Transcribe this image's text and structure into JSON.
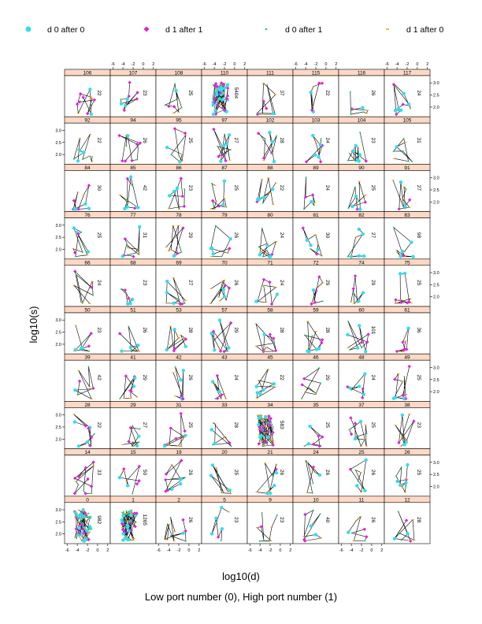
{
  "chart_data": {
    "type": "scatter",
    "title": "",
    "xlabel": "log10(d)",
    "ylabel": "log10(s)",
    "caption": "Low port number (0), High port number (1)",
    "x_ticks": [
      "-6",
      "-4",
      "-2",
      "0",
      "2"
    ],
    "y_ticks": [
      "2.0",
      "2.5",
      "3.0"
    ],
    "ylim": [
      1.6,
      3.3
    ],
    "xlim": [
      -6.5,
      2.5
    ],
    "legend": {
      "placement": "top",
      "entries": [
        {
          "label": "d 0 after 0",
          "color": "#33ddee",
          "marker": "circle"
        },
        {
          "label": "d 1 after 1",
          "color": "#dd22dd",
          "marker": "diamond"
        },
        {
          "label": "d 0 after 1",
          "color": "#22cc66",
          "marker": "dot"
        },
        {
          "label": "d 1 after 0",
          "color": "#ff9900",
          "marker": "dash"
        }
      ]
    },
    "strip_color": "#fdd8c4",
    "panels": [
      {
        "id": "106",
        "count": "22"
      },
      {
        "id": "107",
        "count": "23"
      },
      {
        "id": "108",
        "count": "25"
      },
      {
        "id": "110",
        "count": "5404"
      },
      {
        "id": "111",
        "count": "37"
      },
      {
        "id": "115",
        "count": "22"
      },
      {
        "id": "116",
        "count": "26"
      },
      {
        "id": "117",
        "count": "24"
      },
      {
        "id": "92",
        "count": "22"
      },
      {
        "id": "94",
        "count": "26"
      },
      {
        "id": "95",
        "count": "25"
      },
      {
        "id": "97",
        "count": "27"
      },
      {
        "id": "102",
        "count": "28"
      },
      {
        "id": "103",
        "count": "24"
      },
      {
        "id": "104",
        "count": "23"
      },
      {
        "id": "105",
        "count": "31"
      },
      {
        "id": "84",
        "count": "30"
      },
      {
        "id": "85",
        "count": "42"
      },
      {
        "id": "86",
        "count": "23"
      },
      {
        "id": "87",
        "count": "25"
      },
      {
        "id": "88",
        "count": "22"
      },
      {
        "id": "89",
        "count": "24"
      },
      {
        "id": "90",
        "count": "25"
      },
      {
        "id": "91",
        "count": "27"
      },
      {
        "id": "76",
        "count": "25"
      },
      {
        "id": "77",
        "count": "31"
      },
      {
        "id": "78",
        "count": "29"
      },
      {
        "id": "79",
        "count": "26"
      },
      {
        "id": "80",
        "count": "24"
      },
      {
        "id": "81",
        "count": "30"
      },
      {
        "id": "82",
        "count": "27"
      },
      {
        "id": "83",
        "count": "98"
      },
      {
        "id": "66",
        "count": "24"
      },
      {
        "id": "68",
        "count": "23"
      },
      {
        "id": "69",
        "count": "27"
      },
      {
        "id": "70",
        "count": "26"
      },
      {
        "id": "71",
        "count": "24"
      },
      {
        "id": "72",
        "count": "29"
      },
      {
        "id": "74",
        "count": "29"
      },
      {
        "id": "75",
        "count": "25"
      },
      {
        "id": "50",
        "count": "23"
      },
      {
        "id": "51",
        "count": "26"
      },
      {
        "id": "53",
        "count": "28"
      },
      {
        "id": "57",
        "count": "29"
      },
      {
        "id": "58",
        "count": "28"
      },
      {
        "id": "59",
        "count": "28"
      },
      {
        "id": "60",
        "count": "101"
      },
      {
        "id": "61",
        "count": "36"
      },
      {
        "id": "39",
        "count": "42"
      },
      {
        "id": "41",
        "count": "29"
      },
      {
        "id": "42",
        "count": "26"
      },
      {
        "id": "43",
        "count": "24"
      },
      {
        "id": "45",
        "count": "22"
      },
      {
        "id": "46",
        "count": "29"
      },
      {
        "id": "48",
        "count": "24"
      },
      {
        "id": "49",
        "count": "25"
      },
      {
        "id": "28",
        "count": "22"
      },
      {
        "id": "29",
        "count": "27"
      },
      {
        "id": "31",
        "count": "25"
      },
      {
        "id": "33",
        "count": "28"
      },
      {
        "id": "34",
        "count": "583"
      },
      {
        "id": "35",
        "count": "25"
      },
      {
        "id": "37",
        "count": "25"
      },
      {
        "id": "38",
        "count": "23"
      },
      {
        "id": "14",
        "count": "33"
      },
      {
        "id": "15",
        "count": "50"
      },
      {
        "id": "19",
        "count": "26"
      },
      {
        "id": "20",
        "count": "25"
      },
      {
        "id": "21",
        "count": "26"
      },
      {
        "id": "24",
        "count": "26"
      },
      {
        "id": "25",
        "count": "26"
      },
      {
        "id": "26",
        "count": "25"
      },
      {
        "id": "0",
        "count": "982"
      },
      {
        "id": "1",
        "count": "1265"
      },
      {
        "id": "2",
        "count": "26"
      },
      {
        "id": "5",
        "count": "23"
      },
      {
        "id": "9",
        "count": "23"
      },
      {
        "id": "10",
        "count": "40"
      },
      {
        "id": "11",
        "count": "26"
      },
      {
        "id": "12",
        "count": "28"
      }
    ]
  }
}
